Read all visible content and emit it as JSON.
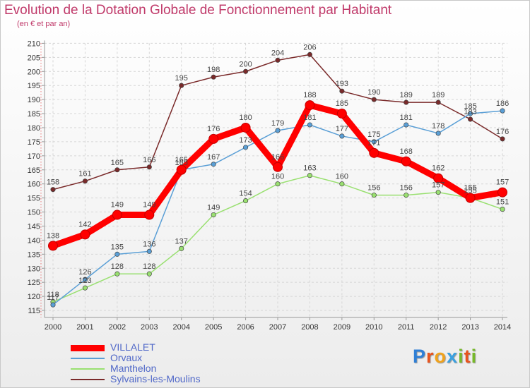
{
  "header": {
    "title": "Evolution de la Dotation Globale de Fonctionnement par Habitant",
    "subtitle": "(en € et par an)"
  },
  "logo": {
    "letters": [
      "P",
      "r",
      "o",
      "x",
      "i",
      "t",
      "i"
    ],
    "colors": [
      "#2e7fd6",
      "#e8541e",
      "#f0a21c",
      "#3aa0e0",
      "#76b82a",
      "#e8541e",
      "#76b82a"
    ]
  },
  "chart_data": {
    "type": "line",
    "x": [
      "2000",
      "2001",
      "2002",
      "2003",
      "2004",
      "2005",
      "2006",
      "2007",
      "2008",
      "2009",
      "2010",
      "2011",
      "2012",
      "2013",
      "2014"
    ],
    "ylim": [
      115,
      210
    ],
    "yticks": [
      115,
      120,
      125,
      130,
      135,
      140,
      145,
      150,
      155,
      160,
      165,
      170,
      175,
      180,
      185,
      190,
      195,
      200,
      205,
      210
    ],
    "grid": true,
    "legend_position": "bottom-left",
    "series": [
      {
        "name": "VILLALET",
        "color": "#ff0000",
        "values": [
          138,
          142,
          149,
          149,
          165,
          176,
          180,
          166,
          188,
          185,
          171,
          168,
          162,
          155,
          157
        ]
      },
      {
        "name": "Orvaux",
        "color": "#5a9fd6",
        "values": [
          117,
          126,
          135,
          136,
          165,
          167,
          173,
          179,
          181,
          177,
          175,
          181,
          178,
          185,
          186
        ]
      },
      {
        "name": "Manthelon",
        "color": "#99e070",
        "values": [
          118,
          123,
          128,
          128,
          137,
          149,
          154,
          160,
          163,
          160,
          156,
          156,
          157,
          155,
          151
        ]
      },
      {
        "name": "Sylvains-les-Moulins",
        "color": "#7a2a2a",
        "values": [
          158,
          161,
          165,
          166,
          195,
          198,
          200,
          204,
          206,
          193,
          190,
          189,
          189,
          183,
          176
        ]
      }
    ]
  }
}
